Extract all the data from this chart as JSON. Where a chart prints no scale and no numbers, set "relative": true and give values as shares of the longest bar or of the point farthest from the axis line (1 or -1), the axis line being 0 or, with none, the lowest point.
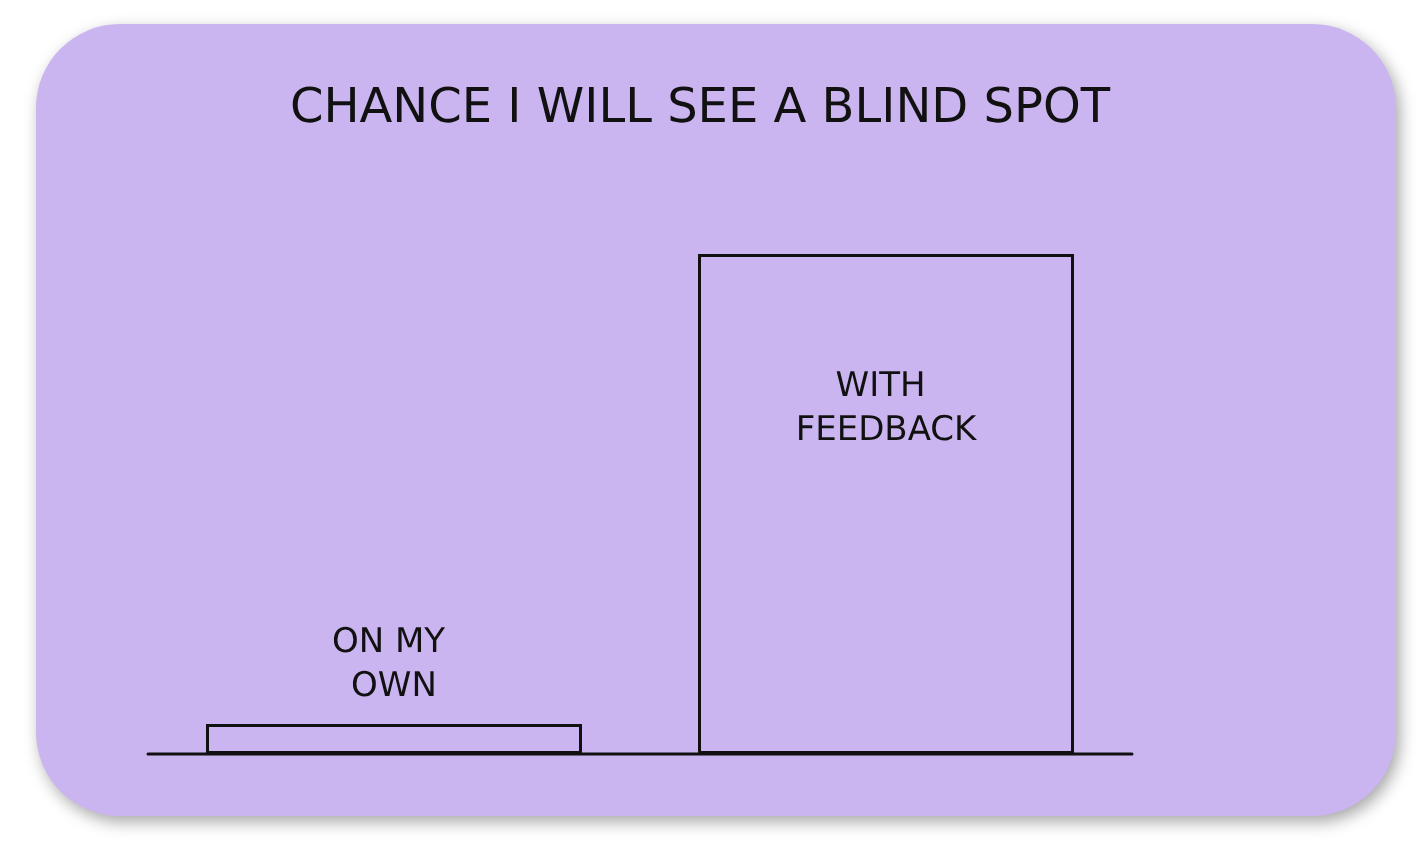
{
  "chart_data": {
    "type": "bar",
    "title": "CHANCE I WILL SEE A BLIND SPOT",
    "categories": [
      "ON MY OWN",
      "WITH FEEDBACK"
    ],
    "values": [
      0.06,
      1
    ],
    "color": "#cbb5f0",
    "relative": true
  }
}
